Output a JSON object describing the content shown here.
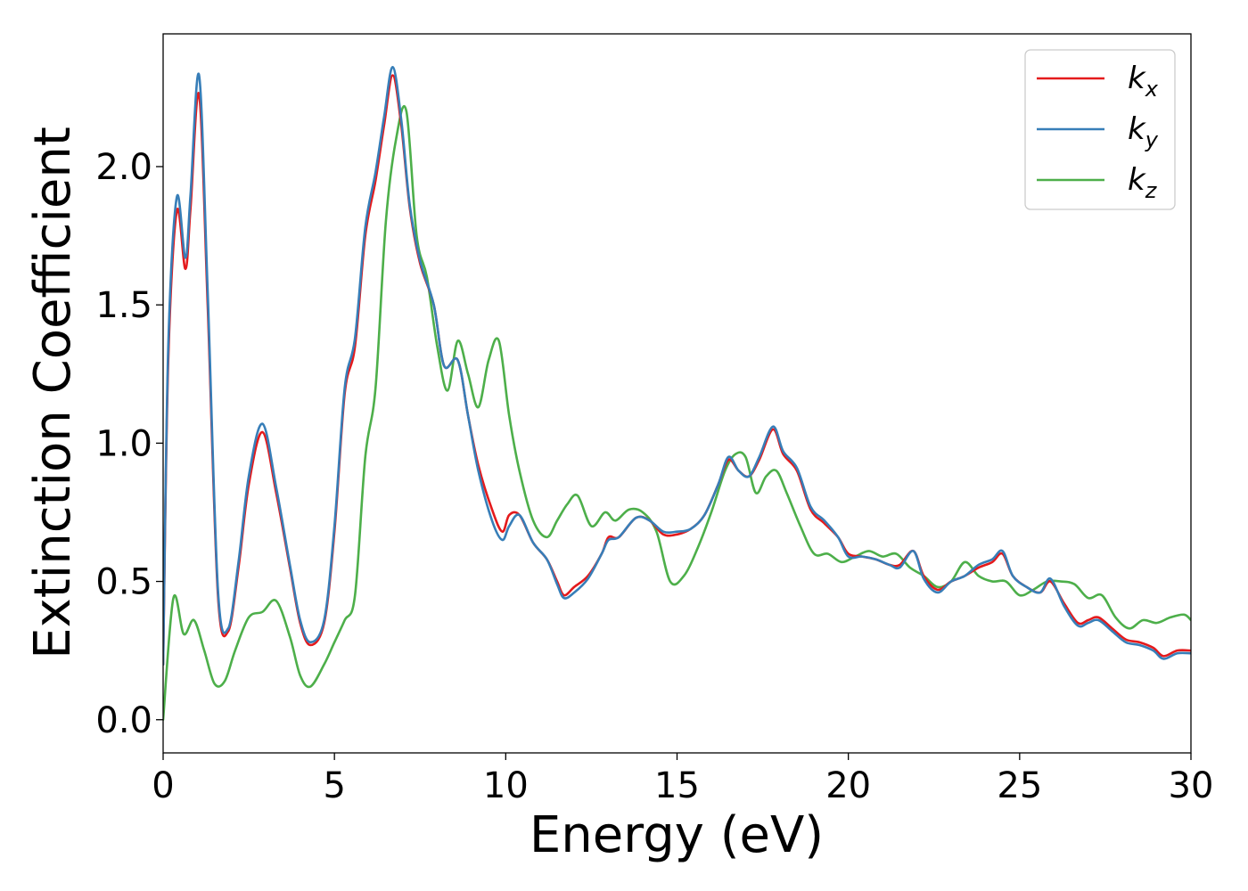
{
  "chart_data": {
    "type": "line",
    "xlabel": "Energy (eV)",
    "ylabel": "Extinction Coefficient",
    "xlim": [
      0,
      30
    ],
    "ylim": [
      -0.12,
      2.48
    ],
    "xticks": [
      0,
      5,
      10,
      15,
      20,
      25,
      30
    ],
    "xtick_labels": [
      "0",
      "5",
      "10",
      "15",
      "20",
      "25",
      "30"
    ],
    "yticks": [
      0.0,
      0.5,
      1.0,
      1.5,
      2.0
    ],
    "ytick_labels": [
      "0.0",
      "0.5",
      "1.0",
      "1.5",
      "2.0"
    ],
    "grid": false,
    "legend_position": "top-right",
    "series": [
      {
        "name": "k_x",
        "legend_base": "k",
        "legend_sub": "x",
        "color": "#e41a1c",
        "x": [
          0,
          0.15,
          0.4,
          0.65,
          0.8,
          1.05,
          1.3,
          1.6,
          1.9,
          2.2,
          2.5,
          2.9,
          3.3,
          3.7,
          4.0,
          4.3,
          4.7,
          5.0,
          5.3,
          5.6,
          5.9,
          6.2,
          6.45,
          6.7,
          6.95,
          7.2,
          7.5,
          7.9,
          8.2,
          8.6,
          8.9,
          9.2,
          9.6,
          9.9,
          10.1,
          10.4,
          10.8,
          11.2,
          11.5,
          11.7,
          12.0,
          12.4,
          12.8,
          13.0,
          13.3,
          13.8,
          14.2,
          14.6,
          15.0,
          15.4,
          15.8,
          16.2,
          16.5,
          16.8,
          17.1,
          17.4,
          17.8,
          18.1,
          18.5,
          18.9,
          19.3,
          19.7,
          20.0,
          20.4,
          20.8,
          21.2,
          21.5,
          21.9,
          22.2,
          22.6,
          23.0,
          23.4,
          23.8,
          24.2,
          24.5,
          24.8,
          25.2,
          25.6,
          25.9,
          26.3,
          26.7,
          27.0,
          27.3,
          27.7,
          28.1,
          28.5,
          28.9,
          29.2,
          29.6,
          30.0
        ],
        "y": [
          0.2,
          1.3,
          1.84,
          1.63,
          1.85,
          2.26,
          1.5,
          0.45,
          0.32,
          0.55,
          0.85,
          1.04,
          0.82,
          0.55,
          0.35,
          0.27,
          0.35,
          0.68,
          1.18,
          1.35,
          1.75,
          1.95,
          2.15,
          2.33,
          2.15,
          1.85,
          1.65,
          1.5,
          1.28,
          1.3,
          1.1,
          0.92,
          0.76,
          0.68,
          0.74,
          0.74,
          0.64,
          0.58,
          0.5,
          0.45,
          0.48,
          0.52,
          0.6,
          0.66,
          0.66,
          0.73,
          0.72,
          0.67,
          0.67,
          0.69,
          0.74,
          0.85,
          0.94,
          0.9,
          0.88,
          0.94,
          1.05,
          0.96,
          0.9,
          0.76,
          0.71,
          0.66,
          0.6,
          0.59,
          0.58,
          0.56,
          0.56,
          0.61,
          0.52,
          0.47,
          0.5,
          0.52,
          0.55,
          0.57,
          0.6,
          0.52,
          0.48,
          0.46,
          0.5,
          0.42,
          0.35,
          0.36,
          0.37,
          0.33,
          0.29,
          0.28,
          0.26,
          0.23,
          0.25,
          0.25
        ]
      },
      {
        "name": "k_y",
        "legend_base": "k",
        "legend_sub": "y",
        "color": "#377eb8",
        "x": [
          0,
          0.15,
          0.4,
          0.65,
          0.8,
          1.05,
          1.3,
          1.6,
          1.9,
          2.2,
          2.5,
          2.9,
          3.3,
          3.7,
          4.0,
          4.3,
          4.7,
          5.0,
          5.3,
          5.6,
          5.9,
          6.2,
          6.45,
          6.7,
          6.95,
          7.2,
          7.5,
          7.9,
          8.2,
          8.6,
          8.9,
          9.2,
          9.6,
          9.9,
          10.1,
          10.4,
          10.8,
          11.2,
          11.5,
          11.7,
          12.0,
          12.4,
          12.8,
          13.0,
          13.3,
          13.8,
          14.2,
          14.6,
          15.0,
          15.4,
          15.8,
          16.2,
          16.5,
          16.8,
          17.1,
          17.4,
          17.8,
          18.1,
          18.5,
          18.9,
          19.3,
          19.7,
          20.0,
          20.4,
          20.8,
          21.2,
          21.5,
          21.9,
          22.2,
          22.6,
          23.0,
          23.4,
          23.8,
          24.2,
          24.5,
          24.8,
          25.2,
          25.6,
          25.9,
          26.3,
          26.7,
          27.0,
          27.3,
          27.7,
          28.1,
          28.5,
          28.9,
          29.2,
          29.6,
          30.0
        ],
        "y": [
          0.2,
          1.35,
          1.89,
          1.67,
          1.9,
          2.33,
          1.55,
          0.47,
          0.33,
          0.57,
          0.88,
          1.07,
          0.84,
          0.56,
          0.36,
          0.28,
          0.36,
          0.7,
          1.2,
          1.38,
          1.78,
          1.98,
          2.18,
          2.36,
          2.17,
          1.86,
          1.66,
          1.5,
          1.28,
          1.3,
          1.1,
          0.9,
          0.72,
          0.65,
          0.7,
          0.74,
          0.64,
          0.58,
          0.49,
          0.44,
          0.46,
          0.51,
          0.6,
          0.65,
          0.66,
          0.73,
          0.72,
          0.68,
          0.68,
          0.69,
          0.74,
          0.85,
          0.95,
          0.9,
          0.88,
          0.95,
          1.06,
          0.97,
          0.91,
          0.77,
          0.72,
          0.66,
          0.59,
          0.59,
          0.58,
          0.56,
          0.55,
          0.61,
          0.51,
          0.46,
          0.5,
          0.52,
          0.56,
          0.58,
          0.61,
          0.52,
          0.48,
          0.46,
          0.51,
          0.41,
          0.34,
          0.35,
          0.36,
          0.32,
          0.28,
          0.27,
          0.25,
          0.22,
          0.24,
          0.24
        ]
      },
      {
        "name": "k_z",
        "legend_base": "k",
        "legend_sub": "z",
        "color": "#4daf4a",
        "x": [
          0,
          0.3,
          0.6,
          0.9,
          1.2,
          1.5,
          1.8,
          2.1,
          2.5,
          2.9,
          3.3,
          3.7,
          4.0,
          4.3,
          4.7,
          5.0,
          5.3,
          5.6,
          5.9,
          6.2,
          6.5,
          6.8,
          7.1,
          7.4,
          7.7,
          8.0,
          8.3,
          8.6,
          8.9,
          9.2,
          9.5,
          9.8,
          10.1,
          10.4,
          10.8,
          11.2,
          11.5,
          11.8,
          12.1,
          12.5,
          12.9,
          13.2,
          13.6,
          14.0,
          14.4,
          14.8,
          15.2,
          15.6,
          16.0,
          16.4,
          16.7,
          17.0,
          17.3,
          17.6,
          17.9,
          18.2,
          18.6,
          19.0,
          19.4,
          19.8,
          20.2,
          20.6,
          21.0,
          21.4,
          21.8,
          22.2,
          22.6,
          23.0,
          23.4,
          23.8,
          24.2,
          24.6,
          25.0,
          25.4,
          25.8,
          26.2,
          26.6,
          27.0,
          27.4,
          27.8,
          28.2,
          28.6,
          29.0,
          29.4,
          29.8,
          30.0
        ],
        "y": [
          0.0,
          0.44,
          0.31,
          0.36,
          0.25,
          0.13,
          0.14,
          0.25,
          0.37,
          0.39,
          0.43,
          0.3,
          0.16,
          0.12,
          0.2,
          0.28,
          0.36,
          0.45,
          0.95,
          1.2,
          1.8,
          2.1,
          2.2,
          1.75,
          1.6,
          1.35,
          1.19,
          1.37,
          1.25,
          1.13,
          1.3,
          1.37,
          1.1,
          0.9,
          0.72,
          0.66,
          0.72,
          0.78,
          0.81,
          0.7,
          0.75,
          0.72,
          0.76,
          0.75,
          0.68,
          0.5,
          0.52,
          0.62,
          0.75,
          0.9,
          0.96,
          0.95,
          0.82,
          0.88,
          0.9,
          0.82,
          0.7,
          0.6,
          0.6,
          0.57,
          0.59,
          0.61,
          0.59,
          0.6,
          0.55,
          0.52,
          0.48,
          0.5,
          0.57,
          0.52,
          0.5,
          0.5,
          0.45,
          0.47,
          0.5,
          0.5,
          0.49,
          0.44,
          0.45,
          0.37,
          0.33,
          0.36,
          0.35,
          0.37,
          0.38,
          0.36
        ]
      }
    ]
  }
}
